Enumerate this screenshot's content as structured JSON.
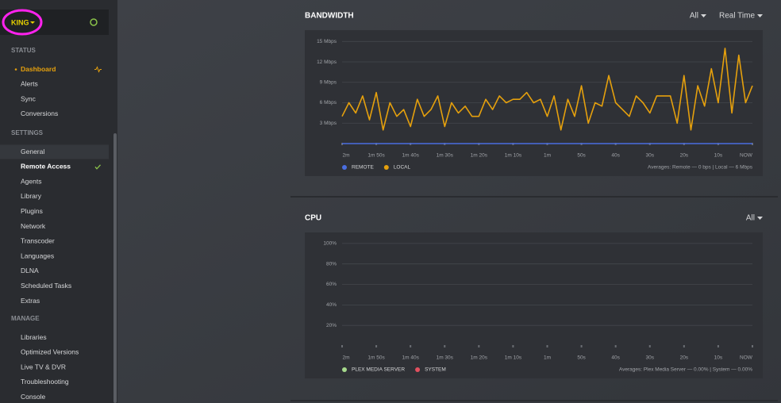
{
  "sidebar": {
    "server": "KING",
    "sections": [
      {
        "title": "STATUS",
        "items": [
          "Dashboard",
          "Alerts",
          "Sync",
          "Conversions"
        ]
      },
      {
        "title": "SETTINGS",
        "items": [
          "General",
          "Remote Access",
          "Agents",
          "Library",
          "Plugins",
          "Network",
          "Transcoder",
          "Languages",
          "DLNA",
          "Scheduled Tasks",
          "Extras"
        ]
      },
      {
        "title": "MANAGE",
        "items": [
          "Libraries",
          "Optimized Versions",
          "Live TV & DVR",
          "Troubleshooting",
          "Console"
        ]
      }
    ]
  },
  "chart_data": [
    {
      "type": "line",
      "title": "BANDWIDTH",
      "filters": [
        "All",
        "Real Time"
      ],
      "x": [
        120,
        118,
        116,
        114,
        112,
        110,
        108,
        106,
        104,
        102,
        100,
        98,
        96,
        94,
        92,
        90,
        88,
        86,
        84,
        82,
        80,
        78,
        76,
        74,
        72,
        70,
        68,
        66,
        64,
        62,
        60,
        58,
        56,
        54,
        52,
        50,
        48,
        46,
        44,
        42,
        40,
        38,
        36,
        34,
        32,
        30,
        28,
        26,
        24,
        22,
        20,
        18,
        16,
        14,
        12,
        10,
        8,
        6,
        4,
        2,
        0
      ],
      "series": [
        {
          "name": "REMOTE",
          "color": "#4a6ee0",
          "values": [
            0,
            0,
            0,
            0,
            0,
            0,
            0,
            0,
            0,
            0,
            0,
            0,
            0,
            0,
            0,
            0,
            0,
            0,
            0,
            0,
            0,
            0,
            0,
            0,
            0,
            0,
            0,
            0,
            0,
            0,
            0,
            0,
            0,
            0,
            0,
            0,
            0,
            0,
            0,
            0,
            0,
            0,
            0,
            0,
            0,
            0,
            0,
            0,
            0,
            0,
            0,
            0,
            0,
            0,
            0,
            0,
            0,
            0,
            0,
            0,
            0
          ]
        },
        {
          "name": "LOCAL",
          "color": "#e5a00d",
          "values": [
            4,
            6,
            4.5,
            7,
            3.5,
            7.5,
            2,
            6,
            4,
            5,
            2.5,
            6.5,
            4,
            5,
            7,
            2.5,
            6,
            4.5,
            5.5,
            4,
            4,
            6.5,
            5,
            7,
            6,
            6.5,
            6.5,
            7.5,
            6,
            6.5,
            4,
            7,
            2,
            6.5,
            4,
            8.5,
            3,
            6,
            5.5,
            10,
            6,
            5,
            4,
            7,
            6,
            4.5,
            7,
            7,
            7,
            3,
            10,
            2,
            8.5,
            5.5,
            11,
            6,
            14,
            4.5,
            13,
            6,
            8.5
          ]
        }
      ],
      "xlim": [
        120,
        0
      ],
      "xticks": [
        {
          "value": 120,
          "label": "2m"
        },
        {
          "value": 110,
          "label": "1m 50s"
        },
        {
          "value": 100,
          "label": "1m 40s"
        },
        {
          "value": 90,
          "label": "1m 30s"
        },
        {
          "value": 80,
          "label": "1m 20s"
        },
        {
          "value": 70,
          "label": "1m 10s"
        },
        {
          "value": 60,
          "label": "1m"
        },
        {
          "value": 50,
          "label": "50s"
        },
        {
          "value": 40,
          "label": "40s"
        },
        {
          "value": 30,
          "label": "30s"
        },
        {
          "value": 20,
          "label": "20s"
        },
        {
          "value": 10,
          "label": "10s"
        },
        {
          "value": 0,
          "label": "NOW"
        }
      ],
      "ylim": [
        0,
        15.5
      ],
      "yticks": [
        {
          "value": 3,
          "label": "3 Mbps"
        },
        {
          "value": 6,
          "label": "6 Mbps"
        },
        {
          "value": 9,
          "label": "9 Mbps"
        },
        {
          "value": 12,
          "label": "12 Mbps"
        },
        {
          "value": 15,
          "label": "15 Mbps"
        }
      ],
      "grid": true,
      "annotation": "Averages: Remote — 0 bps | Local — 6 Mbps"
    },
    {
      "type": "line",
      "title": "CPU",
      "filters": [
        "All"
      ],
      "series": [
        {
          "name": "PLEX MEDIA SERVER",
          "color": "#a6d98c"
        },
        {
          "name": "SYSTEM",
          "color": "#e2505f"
        }
      ],
      "xlim": [
        120,
        0
      ],
      "xticks": [
        {
          "value": 120,
          "label": "2m"
        },
        {
          "value": 110,
          "label": "1m 50s"
        },
        {
          "value": 100,
          "label": "1m 40s"
        },
        {
          "value": 90,
          "label": "1m 30s"
        },
        {
          "value": 80,
          "label": "1m 20s"
        },
        {
          "value": 70,
          "label": "1m 10s"
        },
        {
          "value": 60,
          "label": "1m"
        },
        {
          "value": 50,
          "label": "50s"
        },
        {
          "value": 40,
          "label": "40s"
        },
        {
          "value": 30,
          "label": "30s"
        },
        {
          "value": 20,
          "label": "20s"
        },
        {
          "value": 10,
          "label": "10s"
        },
        {
          "value": 0,
          "label": "NOW"
        }
      ],
      "ylim": [
        0,
        103
      ],
      "yticks": [
        {
          "value": 20,
          "label": "20%"
        },
        {
          "value": 40,
          "label": "40%"
        },
        {
          "value": 60,
          "label": "60%"
        },
        {
          "value": 80,
          "label": "80%"
        },
        {
          "value": 100,
          "label": "100%"
        }
      ],
      "grid": true,
      "annotation": "Averages: Plex Media Server — 0.00% | System — 0.00%"
    }
  ]
}
